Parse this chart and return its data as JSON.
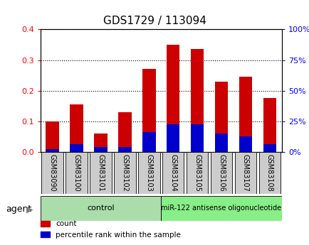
{
  "title": "GDS1729 / 113094",
  "samples": [
    "GSM83090",
    "GSM83100",
    "GSM83101",
    "GSM83102",
    "GSM83103",
    "GSM83104",
    "GSM83105",
    "GSM83106",
    "GSM83107",
    "GSM83108"
  ],
  "count_values": [
    0.1,
    0.155,
    0.06,
    0.13,
    0.27,
    0.35,
    0.335,
    0.23,
    0.245,
    0.175
  ],
  "percentile_values": [
    0.01,
    0.025,
    0.015,
    0.015,
    0.065,
    0.09,
    0.09,
    0.06,
    0.05,
    0.025
  ],
  "bar_color": "#cc0000",
  "pct_color": "#0000cc",
  "ylim": [
    0,
    0.4
  ],
  "yticks_left": [
    0,
    0.1,
    0.2,
    0.3,
    0.4
  ],
  "yticks_right": [
    0,
    25,
    50,
    75,
    100
  ],
  "control_label": "control",
  "treatment_label": "miR-122 antisense oligonucleotide",
  "control_color": "#aaddaa",
  "treatment_color": "#88ee88",
  "agent_label": "agent",
  "legend_count": "count",
  "legend_pct": "percentile rank within the sample",
  "bar_width": 0.55,
  "background_color": "#ffffff",
  "xlabel_bg": "#cccccc"
}
